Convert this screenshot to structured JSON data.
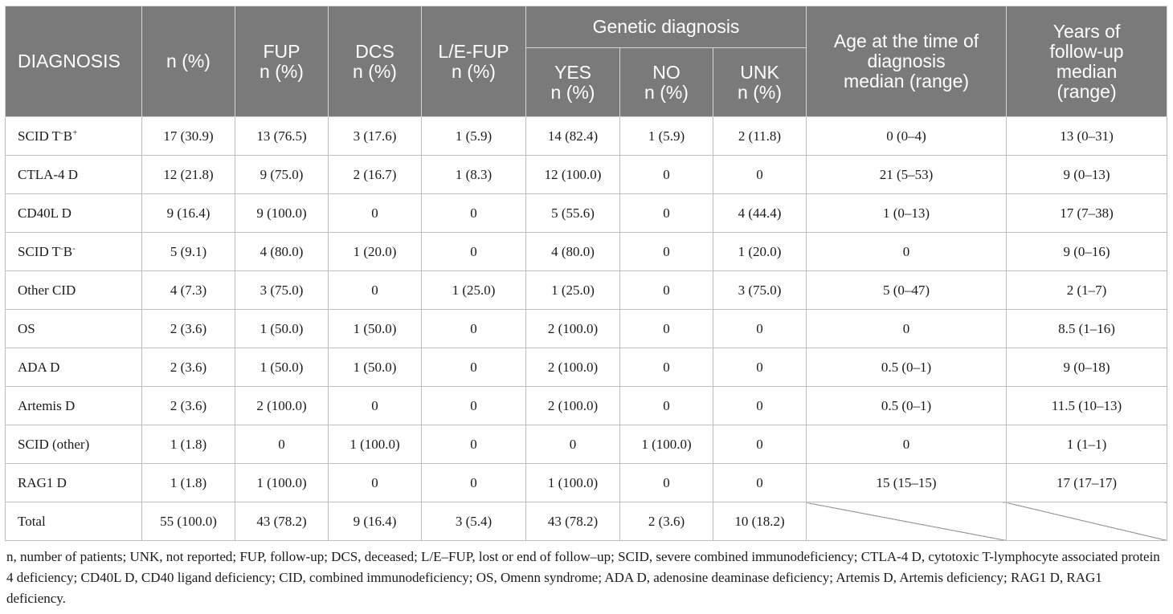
{
  "header": {
    "diagnosis": "DIAGNOSIS",
    "n": "n (%)",
    "fup": [
      "FUP",
      "n (%)"
    ],
    "dcs": [
      "DCS",
      "n (%)"
    ],
    "lefup": [
      "L/E-FUP",
      "n (%)"
    ],
    "genetic": "Genetic diagnosis",
    "yes": [
      "YES",
      "n (%)"
    ],
    "no": [
      "NO",
      "n (%)"
    ],
    "unk": [
      "UNK",
      "n (%)"
    ],
    "age": [
      "Age at the time of",
      "diagnosis",
      "median (range)"
    ],
    "years": [
      "Years of",
      "follow-up",
      "median",
      "(range)"
    ]
  },
  "rows": [
    {
      "label": "SCID T",
      "sup1": "-",
      "mid": "B",
      "sup2": "+",
      "n": "17 (30.9)",
      "fup": "13 (76.5)",
      "dcs": "3 (17.6)",
      "lefup": "1 (5.9)",
      "yes": "14 (82.4)",
      "no": "1 (5.9)",
      "unk": "2 (11.8)",
      "age": "0 (0–4)",
      "years": "13 (0–31)"
    },
    {
      "label": "CTLA-4 D",
      "sup1": "",
      "mid": "",
      "sup2": "",
      "n": "12 (21.8)",
      "fup": "9 (75.0)",
      "dcs": "2 (16.7)",
      "lefup": "1 (8.3)",
      "yes": "12 (100.0)",
      "no": "0",
      "unk": "0",
      "age": "21 (5–53)",
      "years": "9 (0–13)"
    },
    {
      "label": "CD40L D",
      "sup1": "",
      "mid": "",
      "sup2": "",
      "n": "9 (16.4)",
      "fup": "9 (100.0)",
      "dcs": "0",
      "lefup": "0",
      "yes": "5 (55.6)",
      "no": "0",
      "unk": "4 (44.4)",
      "age": "1 (0–13)",
      "years": "17 (7–38)"
    },
    {
      "label": "SCID T",
      "sup1": "-",
      "mid": "B",
      "sup2": "-",
      "n": "5 (9.1)",
      "fup": "4 (80.0)",
      "dcs": "1 (20.0)",
      "lefup": "0",
      "yes": "4 (80.0)",
      "no": "0",
      "unk": "1 (20.0)",
      "age": "0",
      "years": "9 (0–16)"
    },
    {
      "label": "Other CID",
      "sup1": "",
      "mid": "",
      "sup2": "",
      "n": "4 (7.3)",
      "fup": "3 (75.0)",
      "dcs": "0",
      "lefup": "1 (25.0)",
      "yes": "1 (25.0)",
      "no": "0",
      "unk": "3 (75.0)",
      "age": "5 (0–47)",
      "years": "2 (1–7)"
    },
    {
      "label": "OS",
      "sup1": "",
      "mid": "",
      "sup2": "",
      "n": "2 (3.6)",
      "fup": "1 (50.0)",
      "dcs": "1 (50.0)",
      "lefup": "0",
      "yes": "2 (100.0)",
      "no": "0",
      "unk": "0",
      "age": "0",
      "years": "8.5 (1–16)"
    },
    {
      "label": "ADA D",
      "sup1": "",
      "mid": "",
      "sup2": "",
      "n": "2 (3.6)",
      "fup": "1 (50.0)",
      "dcs": "1 (50.0)",
      "lefup": "0",
      "yes": "2 (100.0)",
      "no": "0",
      "unk": "0",
      "age": "0.5 (0–1)",
      "years": "9 (0–18)"
    },
    {
      "label": "Artemis D",
      "sup1": "",
      "mid": "",
      "sup2": "",
      "n": "2 (3.6)",
      "fup": "2 (100.0)",
      "dcs": "0",
      "lefup": "0",
      "yes": "2 (100.0)",
      "no": "0",
      "unk": "0",
      "age": "0.5 (0–1)",
      "years": "11.5 (10–13)"
    },
    {
      "label": "SCID (other)",
      "sup1": "",
      "mid": "",
      "sup2": "",
      "n": "1 (1.8)",
      "fup": "0",
      "dcs": "1 (100.0)",
      "lefup": "0",
      "yes": "0",
      "no": "1 (100.0)",
      "unk": "0",
      "age": "0",
      "years": "1 (1–1)"
    },
    {
      "label": "RAG1 D",
      "sup1": "",
      "mid": "",
      "sup2": "",
      "n": "1 (1.8)",
      "fup": "1 (100.0)",
      "dcs": "0",
      "lefup": "0",
      "yes": "1 (100.0)",
      "no": "0",
      "unk": "0",
      "age": "15 (15–15)",
      "years": "17 (17–17)"
    }
  ],
  "total": {
    "label": "Total",
    "n": "55 (100.0)",
    "fup": "43 (78.2)",
    "dcs": "9 (16.4)",
    "lefup": "3 (5.4)",
    "yes": "43 (78.2)",
    "no": "2 (3.6)",
    "unk": "10 (18.2)"
  },
  "footnote": "n, number of patients; UNK, not reported; FUP, follow-up; DCS, deceased; L/E–FUP, lost or end of follow–up; SCID, severe combined immunodeficiency; CTLA-4 D, cytotoxic T-lymphocyte associated protein 4 deficiency; CD40L D, CD40 ligand deficiency; CID, combined immunodeficiency; OS, Omenn syndrome; ADA D, adenosine deaminase deficiency; Artemis D, Artemis deficiency; RAG1 D, RAG1 deficiency."
}
